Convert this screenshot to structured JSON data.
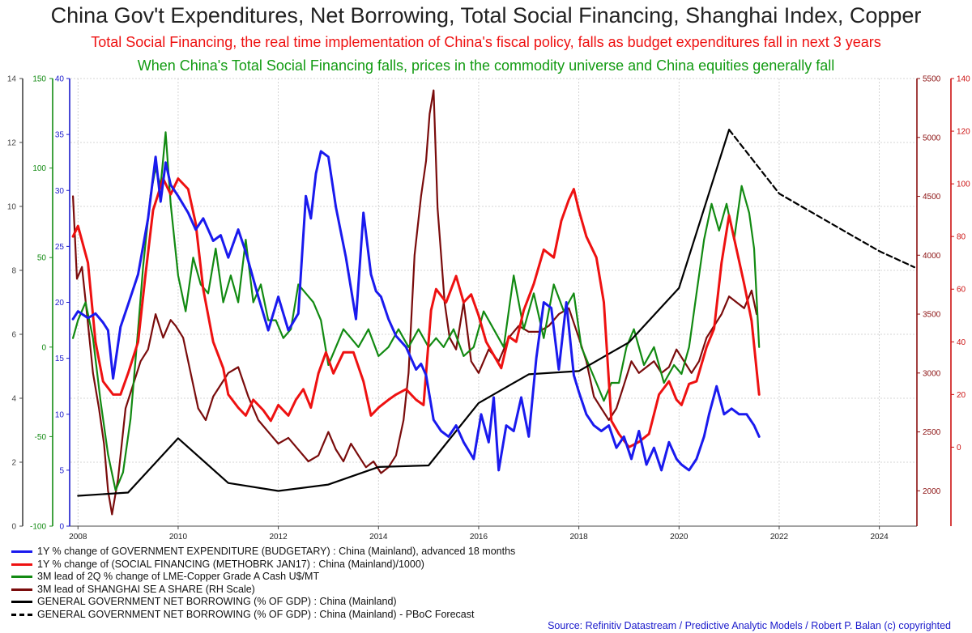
{
  "title": "China Gov't Expenditures, Net Borrowing, Total Social Financing, Shanghai Index, Copper",
  "subtitle_1": "Total Social Financing, the real time implementation of China's fiscal policy, falls as budget expenditures fall in next 3 years",
  "subtitle_2": "When China's Total Social Financing falls, prices in the commodity universe and China equities generally fall",
  "source": "Source: Refinitiv Datastream / Predictive Analytic Models / Robert P. Balan (c) copyrighted",
  "colors": {
    "expenditure": "#1a1aee",
    "social_financing": "#ee1111",
    "copper": "#128a12",
    "shanghai": "#7a0c0c",
    "net_borrowing": "#000000",
    "forecast": "#000000",
    "grid": "#c8c8c8",
    "axis_black": "#444444",
    "axis_green": "#128a12",
    "axis_blue": "#1a1acc",
    "axis_darkred": "#8b1010",
    "axis_red": "#cc1111"
  },
  "legend": [
    {
      "label": "1Y % change of GOVERNMENT EXPENDITURE (BUDGETARY) : China (Mainland), advanced 18 months",
      "color": "#1a1aee",
      "style": "solid"
    },
    {
      "label": "1Y % change of (SOCIAL FINANCING (METHOBRK JAN17) : China (Mainland)/1000)",
      "color": "#ee1111",
      "style": "solid"
    },
    {
      "label": "3M lead of 2Q % change of LME-Copper Grade A Cash U$/MT",
      "color": "#128a12",
      "style": "solid"
    },
    {
      "label": "3M lead of SHANGHAI SE A SHARE (RH Scale)",
      "color": "#7a0c0c",
      "style": "solid"
    },
    {
      "label": "GENERAL GOVERNMENT NET BORROWING (% OF GDP) : China (Mainland)",
      "color": "#000000",
      "style": "solid"
    },
    {
      "label": "GENERAL GOVERNMENT NET BORROWING (% OF GDP) : China (Mainland) - PBoC Forecast",
      "color": "#000000",
      "style": "dashed"
    }
  ],
  "chart_data": {
    "type": "line",
    "x_range": [
      2007.85,
      2024.75
    ],
    "x_ticks": [
      "2008",
      "2010",
      "2012",
      "2014",
      "2016",
      "2018",
      "2020",
      "2022",
      "2024"
    ],
    "grid": true,
    "legend_position": "bottom-left",
    "axes": {
      "left_net_borrowing": {
        "ylim": [
          0,
          14
        ],
        "ticks": [
          "0",
          "2",
          "4",
          "6",
          "8",
          "10",
          "12",
          "14"
        ]
      },
      "left_copper": {
        "ylim": [
          -100,
          150
        ],
        "ticks": [
          "-100",
          "-50",
          "0",
          "50",
          "100",
          "150"
        ]
      },
      "left_expenditure": {
        "ylim": [
          0,
          40
        ],
        "ticks": [
          "0",
          "5",
          "10",
          "15",
          "20",
          "25",
          "30",
          "35",
          "40"
        ]
      },
      "right_shanghai": {
        "ylim": [
          1700,
          5500
        ],
        "ticks": [
          "2000",
          "2500",
          "3000",
          "3500",
          "4000",
          "4500",
          "5000",
          "5500"
        ]
      },
      "right_social_financing": {
        "ylim": [
          -30,
          140
        ],
        "ticks": [
          "0",
          "20",
          "40",
          "60",
          "80",
          "100",
          "120",
          "140"
        ]
      }
    },
    "series": [
      {
        "name": "1Y % change of GOVERNMENT EXPENDITURE (BUDGETARY) : China (Mainland), advanced 18 months",
        "axis": "left_expenditure",
        "x": [
          2007.9,
          2008.0,
          2008.2,
          2008.35,
          2008.5,
          2008.6,
          2008.7,
          2008.85,
          2009.0,
          2009.2,
          2009.4,
          2009.55,
          2009.65,
          2009.75,
          2009.85,
          2010.0,
          2010.2,
          2010.35,
          2010.5,
          2010.7,
          2010.85,
          2011.0,
          2011.2,
          2011.35,
          2011.6,
          2011.8,
          2012.0,
          2012.2,
          2012.4,
          2012.55,
          2012.65,
          2012.75,
          2012.85,
          2013.0,
          2013.15,
          2013.35,
          2013.55,
          2013.7,
          2013.85,
          2013.95,
          2014.05,
          2014.2,
          2014.35,
          2014.55,
          2014.75,
          2014.85,
          2014.95,
          2015.1,
          2015.25,
          2015.4,
          2015.55,
          2015.7,
          2015.9,
          2016.05,
          2016.2,
          2016.3,
          2016.4,
          2016.55,
          2016.7,
          2016.85,
          2017.0,
          2017.15,
          2017.3,
          2017.45,
          2017.6,
          2017.75,
          2017.9,
          2018.0,
          2018.15,
          2018.3,
          2018.45,
          2018.6,
          2018.75,
          2018.9,
          2019.05,
          2019.2,
          2019.35,
          2019.5,
          2019.65,
          2019.8,
          2019.95,
          2020.05,
          2020.2,
          2020.35,
          2020.5,
          2020.6,
          2020.75,
          2020.9,
          2021.05,
          2021.2,
          2021.35,
          2021.5,
          2021.6
        ],
        "values": [
          18.5,
          19.2,
          18.6,
          19.0,
          18.2,
          17.5,
          13.2,
          17.8,
          19.8,
          22.5,
          27.5,
          33.0,
          29.0,
          32.5,
          30.5,
          29.5,
          28.0,
          26.5,
          27.5,
          25.5,
          26.0,
          24.0,
          26.5,
          24.5,
          20.5,
          17.5,
          20.5,
          17.5,
          19.0,
          29.5,
          27.5,
          31.5,
          33.5,
          33.0,
          28.5,
          24.0,
          18.5,
          28.0,
          22.5,
          21.0,
          20.5,
          18.5,
          17.0,
          16.0,
          14.0,
          14.5,
          13.5,
          9.5,
          8.5,
          8.0,
          9.0,
          7.5,
          6.0,
          10.0,
          7.5,
          11.5,
          5.0,
          9.0,
          8.5,
          11.5,
          8.0,
          15.0,
          20.0,
          19.5,
          14.0,
          20.0,
          13.5,
          12.0,
          10.0,
          9.0,
          8.5,
          9.0,
          7.0,
          8.0,
          6.0,
          8.5,
          5.5,
          7.0,
          5.0,
          7.5,
          6.0,
          5.5,
          5.0,
          6.0,
          8.0,
          10.0,
          12.5,
          10.0,
          10.5,
          10.0,
          10.0,
          9.0,
          8.0
        ]
      },
      {
        "name": "1Y % change of (SOCIAL FINANCING (METHOBRK JAN17) : China (Mainland)/1000)",
        "axis": "right_social_financing",
        "x": [
          2007.9,
          2008.0,
          2008.2,
          2008.35,
          2008.5,
          2008.7,
          2008.85,
          2009.0,
          2009.2,
          2009.35,
          2009.5,
          2009.7,
          2009.85,
          2010.0,
          2010.2,
          2010.35,
          2010.5,
          2010.7,
          2010.9,
          2011.0,
          2011.2,
          2011.35,
          2011.5,
          2011.7,
          2011.85,
          2012.0,
          2012.2,
          2012.35,
          2012.5,
          2012.65,
          2012.8,
          2012.95,
          2013.1,
          2013.3,
          2013.5,
          2013.7,
          2013.85,
          2014.0,
          2014.2,
          2014.35,
          2014.55,
          2014.75,
          2014.9,
          2015.05,
          2015.15,
          2015.35,
          2015.55,
          2015.7,
          2015.85,
          2016.0,
          2016.15,
          2016.3,
          2016.45,
          2016.6,
          2016.75,
          2016.9,
          2017.1,
          2017.3,
          2017.5,
          2017.65,
          2017.8,
          2017.9,
          2018.0,
          2018.15,
          2018.35,
          2018.5,
          2018.65,
          2018.8,
          2019.0,
          2019.2,
          2019.4,
          2019.6,
          2019.8,
          2019.95,
          2020.05,
          2020.2,
          2020.35,
          2020.55,
          2020.7,
          2020.85,
          2021.0,
          2021.15,
          2021.3,
          2021.45,
          2021.6
        ],
        "values": [
          80,
          84,
          70,
          40,
          25,
          20,
          20,
          28,
          40,
          66,
          90,
          102,
          96,
          102,
          98,
          85,
          60,
          40,
          30,
          20,
          15,
          12,
          18,
          14,
          10,
          16,
          12,
          18,
          22,
          15,
          28,
          36,
          28,
          36,
          36,
          25,
          12,
          15,
          18,
          20,
          22,
          18,
          16,
          52,
          60,
          55,
          65,
          55,
          58,
          50,
          40,
          35,
          30,
          42,
          40,
          52,
          62,
          75,
          72,
          86,
          94,
          98,
          90,
          80,
          72,
          55,
          10,
          5,
          0,
          2,
          5,
          20,
          25,
          18,
          16,
          24,
          25,
          38,
          45,
          70,
          88,
          75,
          62,
          48,
          20
        ]
      },
      {
        "name": "3M lead of 2Q % change of LME-Copper Grade A Cash U$/MT",
        "axis": "left_copper",
        "x": [
          2007.9,
          2008.0,
          2008.15,
          2008.3,
          2008.45,
          2008.6,
          2008.75,
          2008.9,
          2009.05,
          2009.2,
          2009.3,
          2009.45,
          2009.55,
          2009.65,
          2009.75,
          2009.85,
          2010.0,
          2010.15,
          2010.3,
          2010.45,
          2010.6,
          2010.75,
          2010.9,
          2011.05,
          2011.2,
          2011.35,
          2011.5,
          2011.65,
          2011.8,
          2011.95,
          2012.1,
          2012.25,
          2012.4,
          2012.55,
          2012.7,
          2012.85,
          2013.0,
          2013.15,
          2013.3,
          2013.45,
          2013.6,
          2013.8,
          2014.0,
          2014.2,
          2014.4,
          2014.6,
          2014.8,
          2015.0,
          2015.15,
          2015.3,
          2015.5,
          2015.7,
          2015.9,
          2016.1,
          2016.3,
          2016.5,
          2016.7,
          2016.9,
          2017.1,
          2017.3,
          2017.5,
          2017.7,
          2017.9,
          2018.05,
          2018.2,
          2018.35,
          2018.5,
          2018.65,
          2018.8,
          2018.95,
          2019.1,
          2019.3,
          2019.5,
          2019.7,
          2019.9,
          2020.05,
          2020.2,
          2020.35,
          2020.5,
          2020.65,
          2020.8,
          2020.95,
          2021.1,
          2021.25,
          2021.4,
          2021.5,
          2021.6
        ],
        "values": [
          5,
          15,
          25,
          5,
          -30,
          -60,
          -80,
          -70,
          -40,
          10,
          45,
          85,
          100,
          90,
          120,
          80,
          40,
          20,
          50,
          35,
          30,
          55,
          25,
          40,
          25,
          60,
          25,
          35,
          15,
          15,
          5,
          10,
          35,
          30,
          25,
          15,
          -10,
          0,
          10,
          5,
          0,
          10,
          -5,
          0,
          10,
          0,
          10,
          0,
          5,
          0,
          10,
          -5,
          0,
          20,
          10,
          0,
          40,
          10,
          30,
          5,
          35,
          20,
          30,
          0,
          -10,
          -20,
          -30,
          -20,
          -20,
          0,
          10,
          -10,
          0,
          -20,
          -10,
          -15,
          0,
          30,
          60,
          80,
          65,
          80,
          60,
          90,
          75,
          55,
          0
        ]
      },
      {
        "name": "3M lead of SHANGHAI SE A SHARE (RH Scale)",
        "axis": "right_shanghai",
        "x": [
          2007.9,
          2007.98,
          2008.08,
          2008.18,
          2008.3,
          2008.42,
          2008.52,
          2008.6,
          2008.68,
          2008.8,
          2008.95,
          2009.1,
          2009.25,
          2009.4,
          2009.55,
          2009.7,
          2009.85,
          2009.95,
          2010.1,
          2010.25,
          2010.4,
          2010.55,
          2010.7,
          2010.85,
          2011.0,
          2011.2,
          2011.4,
          2011.6,
          2011.8,
          2012.0,
          2012.2,
          2012.4,
          2012.6,
          2012.8,
          2013.0,
          2013.15,
          2013.3,
          2013.45,
          2013.6,
          2013.75,
          2013.9,
          2014.05,
          2014.2,
          2014.35,
          2014.5,
          2014.6,
          2014.72,
          2014.85,
          2014.95,
          2015.02,
          2015.1,
          2015.18,
          2015.25,
          2015.32,
          2015.42,
          2015.55,
          2015.7,
          2015.85,
          2016.0,
          2016.2,
          2016.4,
          2016.6,
          2016.8,
          2017.0,
          2017.2,
          2017.4,
          2017.6,
          2017.8,
          2018.0,
          2018.15,
          2018.3,
          2018.45,
          2018.6,
          2018.75,
          2018.9,
          2019.05,
          2019.2,
          2019.35,
          2019.5,
          2019.65,
          2019.8,
          2019.95,
          2020.1,
          2020.25,
          2020.4,
          2020.55,
          2020.7,
          2020.85,
          2021.0,
          2021.15,
          2021.3,
          2021.45,
          2021.55
        ],
        "values": [
          4500,
          3800,
          3900,
          3500,
          3000,
          2700,
          2400,
          2000,
          1800,
          2100,
          2700,
          2900,
          3100,
          3200,
          3500,
          3300,
          3450,
          3400,
          3300,
          3000,
          2700,
          2600,
          2800,
          2900,
          3000,
          3050,
          2800,
          2600,
          2500,
          2400,
          2450,
          2350,
          2250,
          2300,
          2500,
          2350,
          2250,
          2400,
          2300,
          2200,
          2250,
          2150,
          2200,
          2300,
          2600,
          3000,
          4000,
          4500,
          4800,
          5200,
          5400,
          4400,
          4000,
          3600,
          3300,
          3200,
          3600,
          3100,
          3000,
          3200,
          3100,
          3300,
          3400,
          3350,
          3350,
          3400,
          3500,
          3550,
          3300,
          3100,
          2800,
          2700,
          2600,
          2700,
          2900,
          3100,
          3000,
          3050,
          3100,
          3000,
          3050,
          3200,
          3100,
          3000,
          3100,
          3300,
          3400,
          3500,
          3650,
          3600,
          3550,
          3700,
          3500
        ]
      },
      {
        "name": "GENERAL GOVERNMENT NET BORROWING (% OF GDP) : China (Mainland)",
        "axis": "left_net_borrowing",
        "x": [
          2008.0,
          2009.0,
          2010.0,
          2011.0,
          2012.0,
          2013.0,
          2014.0,
          2015.0,
          2016.0,
          2017.0,
          2018.0,
          2019.0,
          2020.0,
          2021.0
        ],
        "values": [
          0.95,
          1.05,
          2.75,
          1.35,
          1.1,
          1.3,
          1.85,
          1.9,
          3.85,
          4.75,
          4.85,
          5.75,
          7.45,
          12.4
        ]
      },
      {
        "name": "GENERAL GOVERNMENT NET BORROWING (% OF GDP) : China (Mainland) - PBoC Forecast",
        "axis": "left_net_borrowing",
        "x": [
          2021.0,
          2022.0,
          2023.0,
          2024.0,
          2024.7
        ],
        "values": [
          12.4,
          10.4,
          9.5,
          8.6,
          8.1
        ]
      }
    ]
  }
}
